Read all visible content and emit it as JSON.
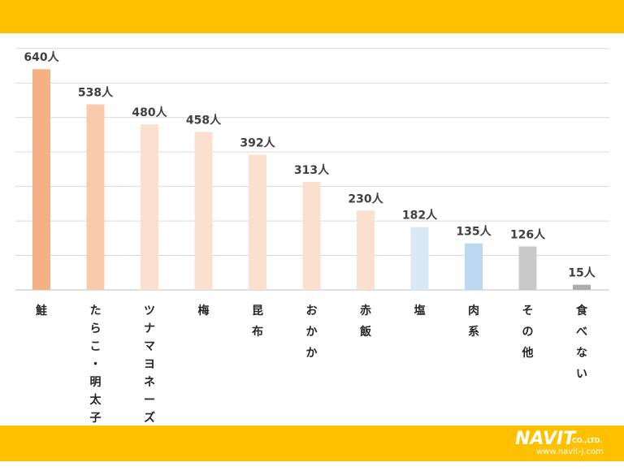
{
  "chart_data": {
    "type": "bar",
    "categories": [
      "鮭",
      "たらこ・明太子",
      "ツナマヨネーズ",
      "梅",
      "昆布",
      "おかか",
      "赤飯",
      "塩",
      "肉系",
      "その他",
      "食べない"
    ],
    "values": [
      640,
      538,
      480,
      458,
      392,
      313,
      230,
      182,
      135,
      126,
      15
    ],
    "value_labels": [
      "640人",
      "538人",
      "480人",
      "458人",
      "392人",
      "313人",
      "230人",
      "182人",
      "135人",
      "126人",
      "15人"
    ],
    "colors": [
      "#F4B183",
      "#F8CBAD",
      "#FBE0D0",
      "#FBE0D0",
      "#FBE0D0",
      "#FBE0D0",
      "#FBE0D0",
      "#DAE7F4",
      "#BDD7EE",
      "#C9C9C9",
      "#ADADAD"
    ],
    "ylim": [
      0,
      700
    ],
    "grid": true,
    "title": "",
    "xlabel": "",
    "ylabel": ""
  },
  "branding": {
    "logo_text": "NAVIT",
    "logo_suffix": "CO.,LTD.",
    "url": "www.navit-j.com"
  },
  "colors": {
    "banner": "#FFC000",
    "grid": "#D9D9D9"
  }
}
